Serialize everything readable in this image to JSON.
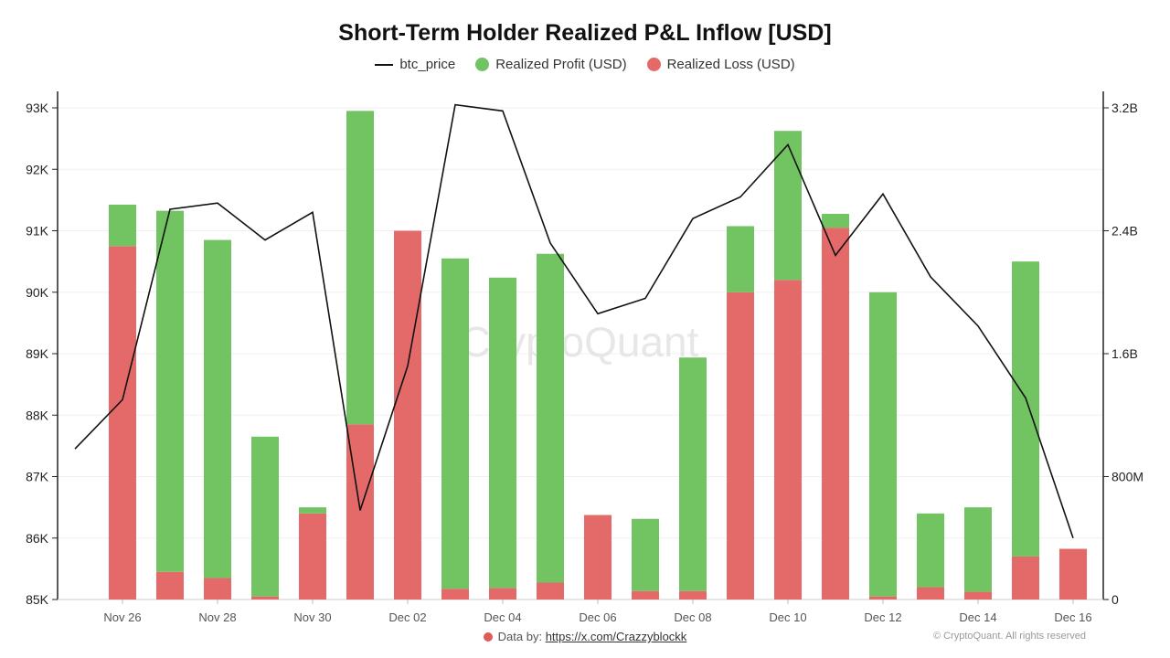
{
  "page": {
    "footer_prefix": "Data by: ",
    "footer_link": "https://x.com/Crazzyblockk",
    "copyright": "© CryptoQuant. All rights reserved"
  },
  "colors": {
    "profit": "#72c463",
    "loss": "#e46a6a",
    "price": "#111111"
  },
  "chart_data": {
    "type": "bar",
    "title": "Short-Term Holder Realized P&L Inflow [USD]",
    "legend": [
      {
        "name": "btc_price",
        "kind": "line"
      },
      {
        "name": "Realized Profit (USD)",
        "kind": "dot"
      },
      {
        "name": "Realized Loss (USD)",
        "kind": "dot"
      }
    ],
    "watermark": "CryptoQuant",
    "x_labels": [
      "Nov 26",
      "Nov 28",
      "Nov 30",
      "Dec 02",
      "Dec 04",
      "Dec 06",
      "Dec 08",
      "Dec 10",
      "Dec 12",
      "Dec 14",
      "Dec 16"
    ],
    "left_axis": {
      "ticks": [
        "85K",
        "86K",
        "87K",
        "88K",
        "89K",
        "90K",
        "91K",
        "92K",
        "93K"
      ],
      "range": [
        85000,
        93000
      ]
    },
    "right_axis": {
      "ticks": [
        "0",
        "800M",
        "1.6B",
        "2.4B",
        "3.2B"
      ],
      "range": [
        0,
        3200000000
      ]
    },
    "series": [
      {
        "name": "btc_price",
        "type": "line",
        "axis": "left",
        "values": [
          87450,
          88250,
          91350,
          91450,
          90850,
          91300,
          86450,
          88800,
          93050,
          92950,
          90800,
          89650,
          89900,
          91200,
          91550,
          92400,
          90600,
          91600,
          90250,
          89450,
          88280,
          86000
        ]
      },
      {
        "name": "Realized Loss (USD)",
        "type": "bar",
        "axis": "right",
        "values": [
          2300000000,
          180000000,
          140000000,
          20000000,
          560000000,
          1140000000,
          2400000000,
          70000000,
          75000000,
          110000000,
          550000000,
          55000000,
          55000000,
          2000000000,
          2080000000,
          2420000000,
          20000000,
          80000000,
          50000000,
          280000000,
          330000000
        ]
      },
      {
        "name": "Realized Profit (USD)",
        "type": "bar",
        "axis": "right",
        "values": [
          270000000,
          2350000000,
          2200000000,
          1040000000,
          40000000,
          2040000000,
          0,
          2150000000,
          2020000000,
          2140000000,
          0,
          470000000,
          1520000000,
          430000000,
          970000000,
          90000000,
          1980000000,
          480000000,
          550000000,
          1920000000,
          0
        ]
      }
    ]
  }
}
